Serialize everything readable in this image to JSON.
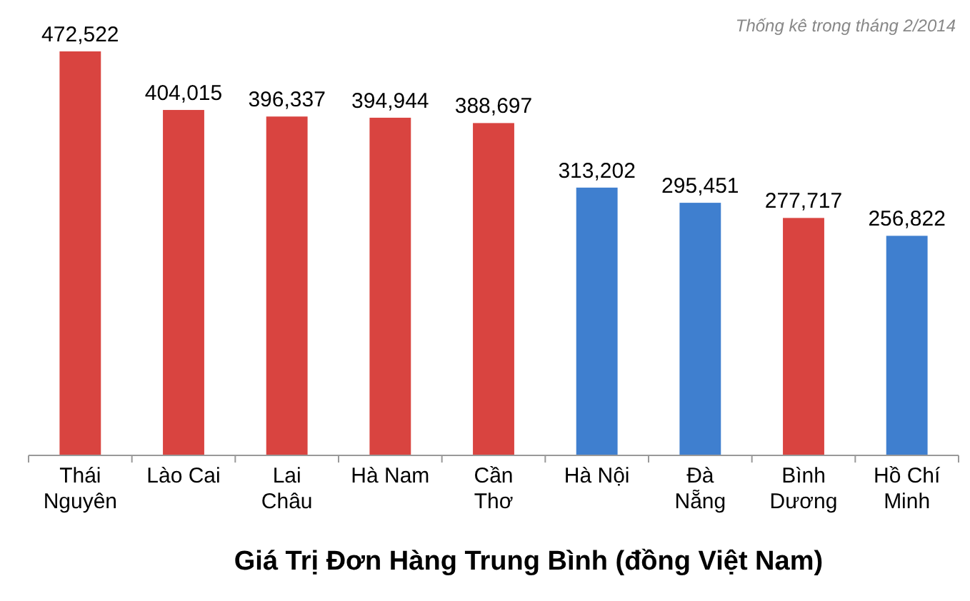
{
  "chart_data": {
    "type": "bar",
    "title": "Giá Trị Đơn Hàng Trung Bình (đồng Việt Nam)",
    "annotations": [
      "Thống kê trong tháng 2/2014"
    ],
    "categories": [
      "Thái\nNguyên",
      "Lào Cai",
      "Lai\nChâu",
      "Hà Nam",
      "Cần\nThơ",
      "Hà Nội",
      "Đà\nNẵng",
      "Bình\nDương",
      "Hồ Chí\nMinh"
    ],
    "values": [
      472522,
      404015,
      396337,
      394944,
      388697,
      313202,
      295451,
      277717,
      256822
    ],
    "colors": [
      "#d94440",
      "#d94440",
      "#d94440",
      "#d94440",
      "#d94440",
      "#3f7fcf",
      "#3f7fcf",
      "#d94440",
      "#3f7fcf"
    ],
    "value_labels": [
      "472,522",
      "404,015",
      "396,337",
      "394,944",
      "388,697",
      "313,202",
      "295,451",
      "277,717",
      "256,822"
    ],
    "tick_labels": "x"
  }
}
